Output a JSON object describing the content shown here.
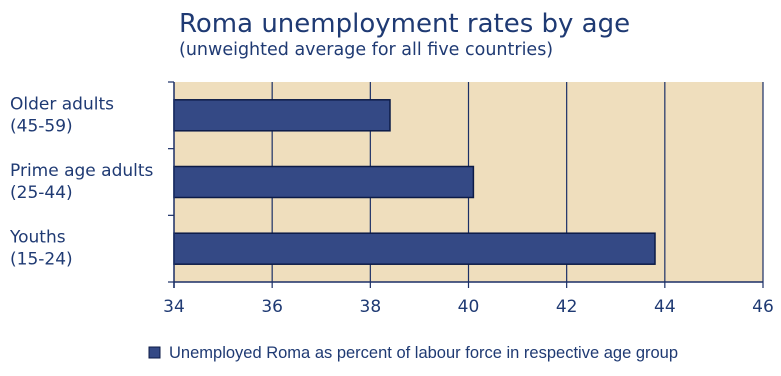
{
  "chart_data": {
    "type": "bar",
    "orientation": "horizontal",
    "title": "Roma unemployment rates by age",
    "subtitle": "(unweighted average for all five countries)",
    "categories": [
      [
        "Older adults",
        " (45-59)"
      ],
      [
        "Prime age adults",
        "(25-44)"
      ],
      [
        "Youths",
        " (15-24)"
      ]
    ],
    "series": [
      {
        "name": "Unemployed Roma as percent of labour force in respective age group",
        "values": [
          38.4,
          40.1,
          43.8
        ]
      }
    ],
    "xlim": [
      34,
      46
    ],
    "xticks": [
      34,
      36,
      38,
      40,
      42,
      44,
      46
    ],
    "grid": true,
    "legend_position": "bottom",
    "colors": {
      "plot_background": "#efdebd",
      "bar_fill": "#344985",
      "bar_edge": "#0c1b47",
      "gridline": "#1b2f66",
      "text": "#1f3a73"
    }
  }
}
